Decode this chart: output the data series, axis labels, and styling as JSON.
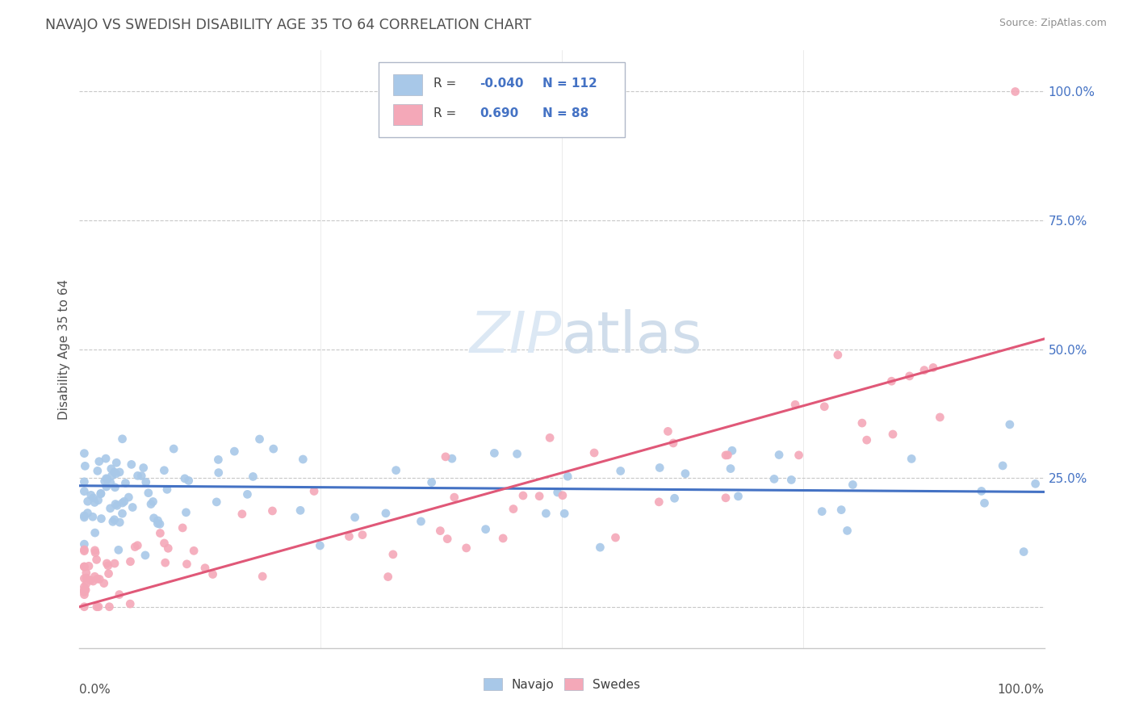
{
  "title": "NAVAJO VS SWEDISH DISABILITY AGE 35 TO 64 CORRELATION CHART",
  "source_text": "Source: ZipAtlas.com",
  "ylabel": "Disability Age 35 to 64",
  "ytick_positions": [
    0.0,
    0.25,
    0.5,
    0.75,
    1.0
  ],
  "ytick_labels": [
    "",
    "25.0%",
    "50.0%",
    "75.0%",
    "100.0%"
  ],
  "xlim": [
    0.0,
    1.0
  ],
  "ylim": [
    -0.08,
    1.08
  ],
  "legend_navajo_R": "-0.040",
  "legend_navajo_N": "112",
  "legend_swedes_R": "0.690",
  "legend_swedes_N": "88",
  "navajo_color": "#a8c8e8",
  "swedes_color": "#f4a8b8",
  "navajo_line_color": "#4472c4",
  "swedes_line_color": "#e05878",
  "background_color": "#ffffff",
  "grid_color": "#c8c8c8",
  "watermark_color": "#dce8f4",
  "title_color": "#505050",
  "source_color": "#909090",
  "ytick_color": "#4472c4"
}
